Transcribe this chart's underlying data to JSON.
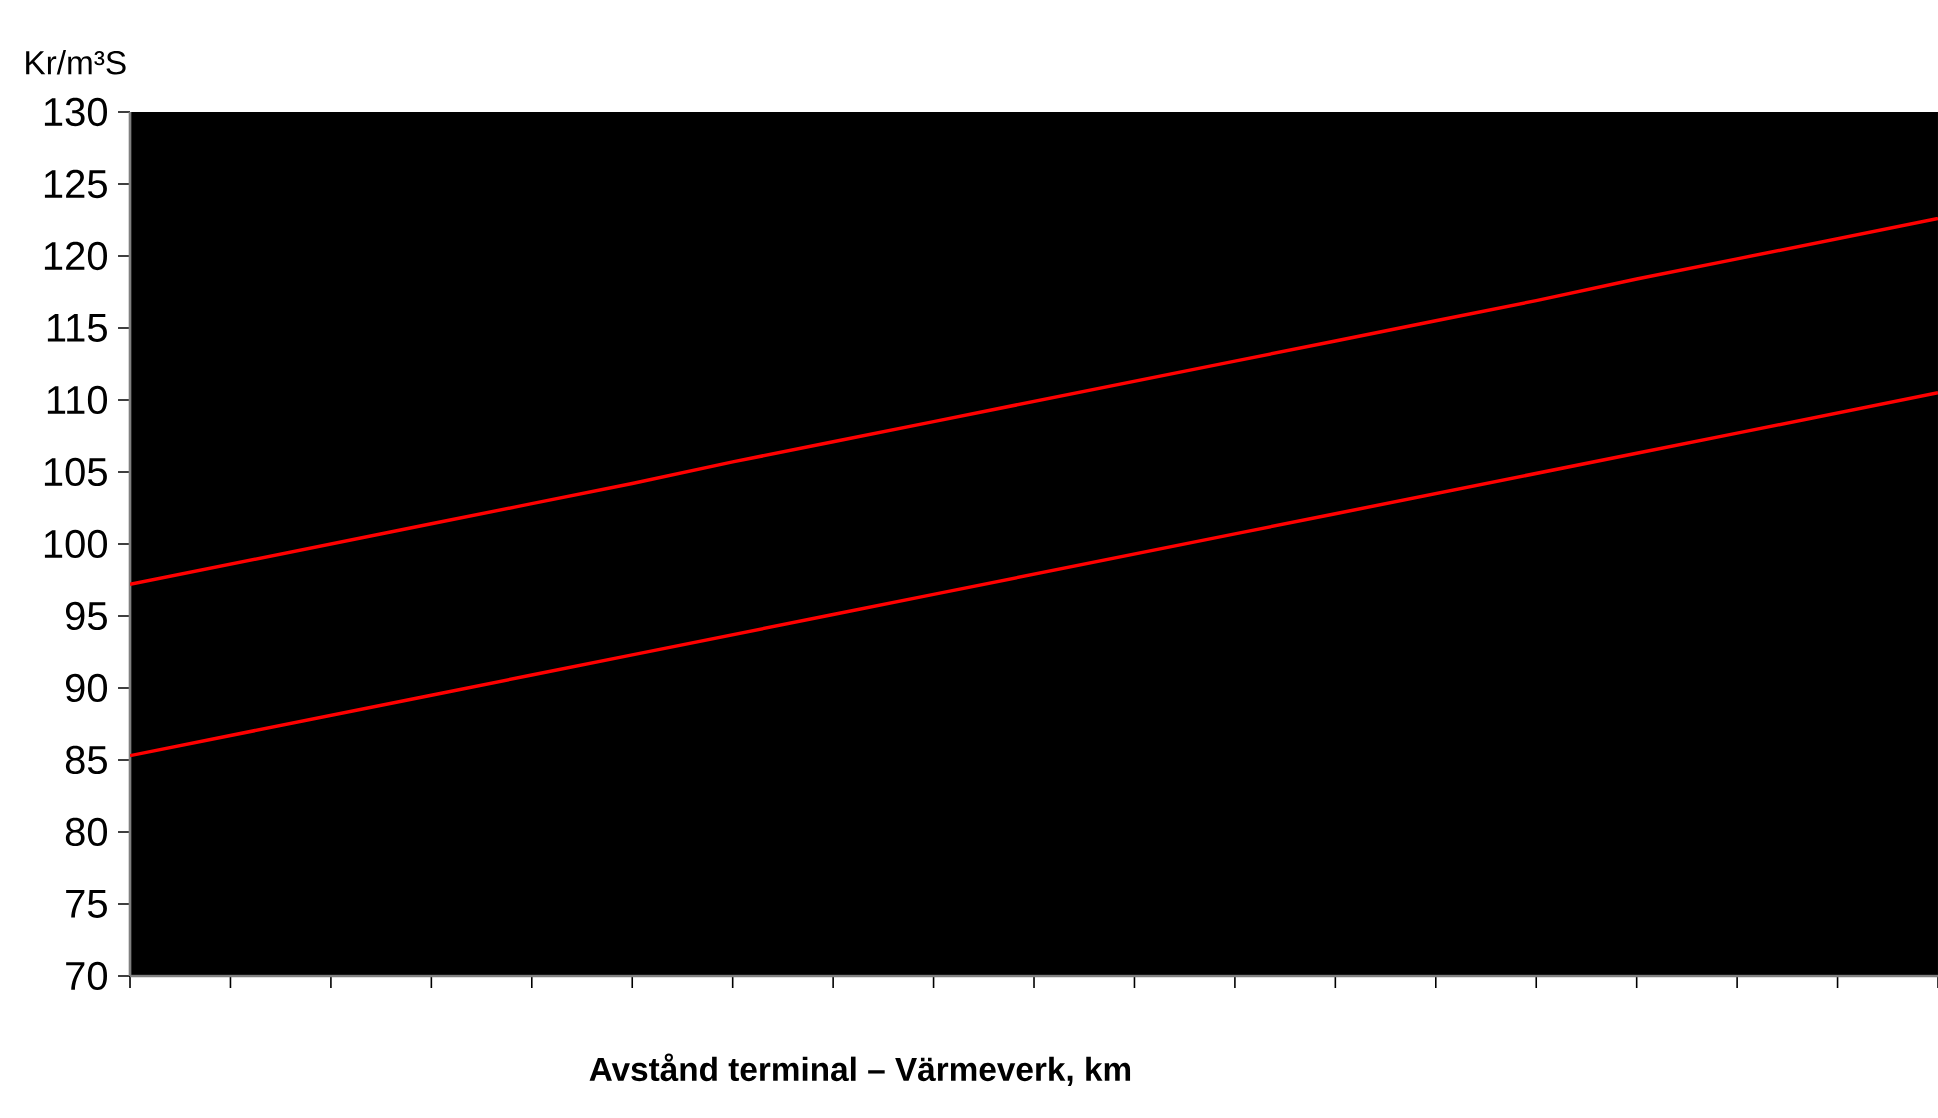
{
  "chart_data": {
    "type": "line",
    "xlabel": "Avstånd terminal – Värmeverk, km",
    "ylabel": "Kr/m³S",
    "categories": [
      null,
      null,
      null,
      null,
      null,
      null,
      null,
      null,
      null,
      null,
      null,
      null,
      null,
      null,
      null,
      null,
      null,
      null,
      null
    ],
    "series": [
      {
        "color": "#ff0000",
        "values": [
          97.2,
          98.6,
          100.0,
          101.4,
          102.8,
          104.2,
          105.7,
          107.1,
          108.5,
          109.9,
          111.3,
          112.7,
          114.1,
          115.5,
          116.9,
          118.4,
          119.8,
          121.2,
          122.6
        ]
      },
      {
        "color": "#ff0000",
        "values": [
          85.3,
          86.7,
          88.1,
          89.5,
          90.9,
          92.3,
          93.7,
          95.1,
          96.5,
          97.9,
          99.3,
          100.7,
          102.1,
          103.5,
          104.9,
          106.3,
          107.7,
          109.1,
          110.5
        ]
      }
    ],
    "ylim": [
      70,
      130
    ],
    "yticks": [
      70,
      75,
      80,
      85,
      90,
      95,
      100,
      105,
      110,
      115,
      120,
      125,
      130
    ],
    "tick_labels": "y"
  }
}
